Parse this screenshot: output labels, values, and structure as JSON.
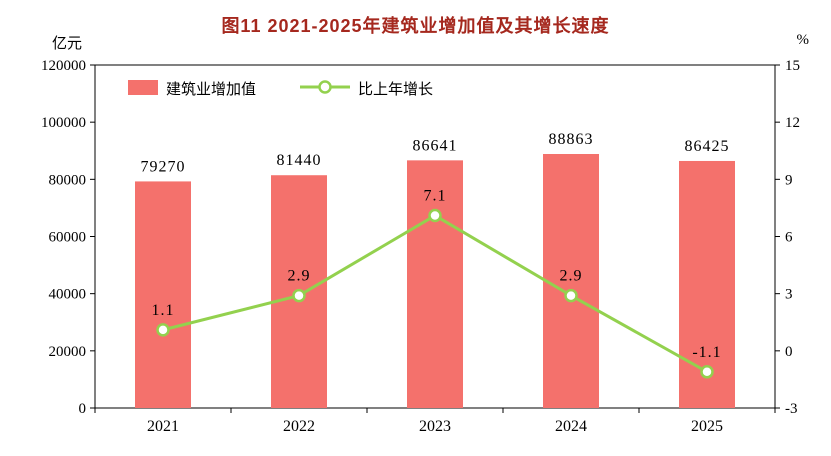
{
  "header": {
    "title": "图11  2021-2025年建筑业增加值及其增长速度",
    "title_color": "#a5281e"
  },
  "axes": {
    "unit_left": "亿元",
    "unit_right": "%"
  },
  "chart_data": {
    "type": "combo",
    "title": "图11 2021-2025年建筑业增加值及其增长速度",
    "categories": [
      "2021",
      "2022",
      "2023",
      "2024",
      "2025"
    ],
    "series": [
      {
        "name": "建筑业增加值",
        "kind": "bar",
        "axis": "left",
        "color": "#f4716c",
        "values": [
          79270,
          81440,
          86641,
          88863,
          86425
        ]
      },
      {
        "name": "比上年增长",
        "kind": "line",
        "axis": "right",
        "color": "#93d14e",
        "values": [
          1.1,
          2.9,
          7.1,
          2.9,
          -1.1
        ]
      }
    ],
    "ylabel_left": "亿元",
    "ylabel_right": "%",
    "ylim_left": [
      0,
      120000
    ],
    "ytick_step_left": 20000,
    "ylim_right": [
      -3,
      15
    ],
    "ytick_step_right": 3,
    "grid": false,
    "legend_position": "top-left"
  }
}
